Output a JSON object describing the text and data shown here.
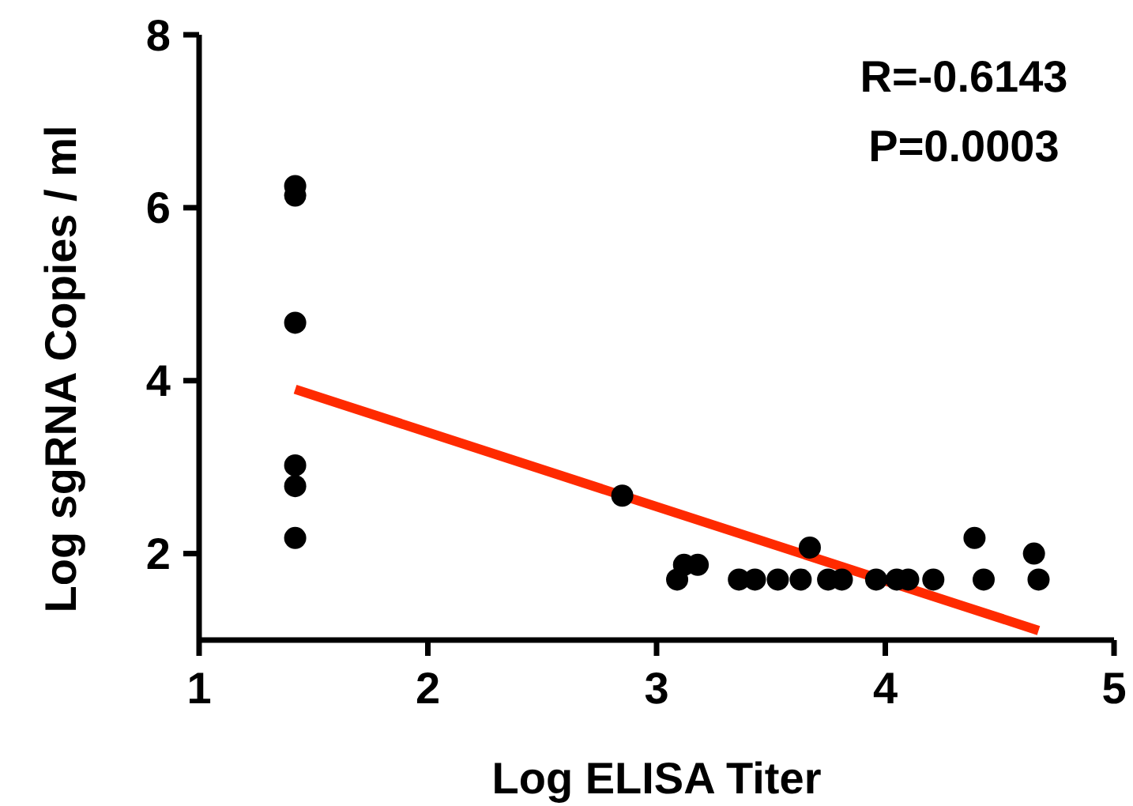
{
  "chart_data": {
    "type": "scatter",
    "xlabel": "Log ELISA Titer",
    "ylabel": "Log sgRNA Copies / ml",
    "xlim": [
      1,
      5
    ],
    "xticks": [
      1,
      2,
      3,
      4,
      5
    ],
    "ylim": [
      1,
      8
    ],
    "yticks": [
      2,
      4,
      6,
      8
    ],
    "grid": false,
    "annotations": [
      "R=-0.6143",
      "P=0.0003"
    ],
    "series": [
      {
        "marker": "circle",
        "color": "#000000",
        "x": [
          1.42,
          1.42,
          1.42,
          1.42,
          1.42,
          1.42,
          2.85,
          3.09,
          3.12,
          3.18,
          3.36,
          3.43,
          3.53,
          3.63,
          3.67,
          3.75,
          3.81,
          3.96,
          4.05,
          4.1,
          4.21,
          4.39,
          4.43,
          4.65,
          4.67
        ],
        "values": [
          6.25,
          6.14,
          4.67,
          3.02,
          2.78,
          2.18,
          2.67,
          1.7,
          1.87,
          1.87,
          1.7,
          1.7,
          1.7,
          1.7,
          2.07,
          1.7,
          1.7,
          1.7,
          1.7,
          1.7,
          1.7,
          2.18,
          1.7,
          2.0,
          1.7
        ]
      },
      {
        "type": "line",
        "color": "#ff2a00",
        "x": [
          1.42,
          4.67
        ],
        "values": [
          3.9,
          1.11
        ]
      }
    ]
  }
}
